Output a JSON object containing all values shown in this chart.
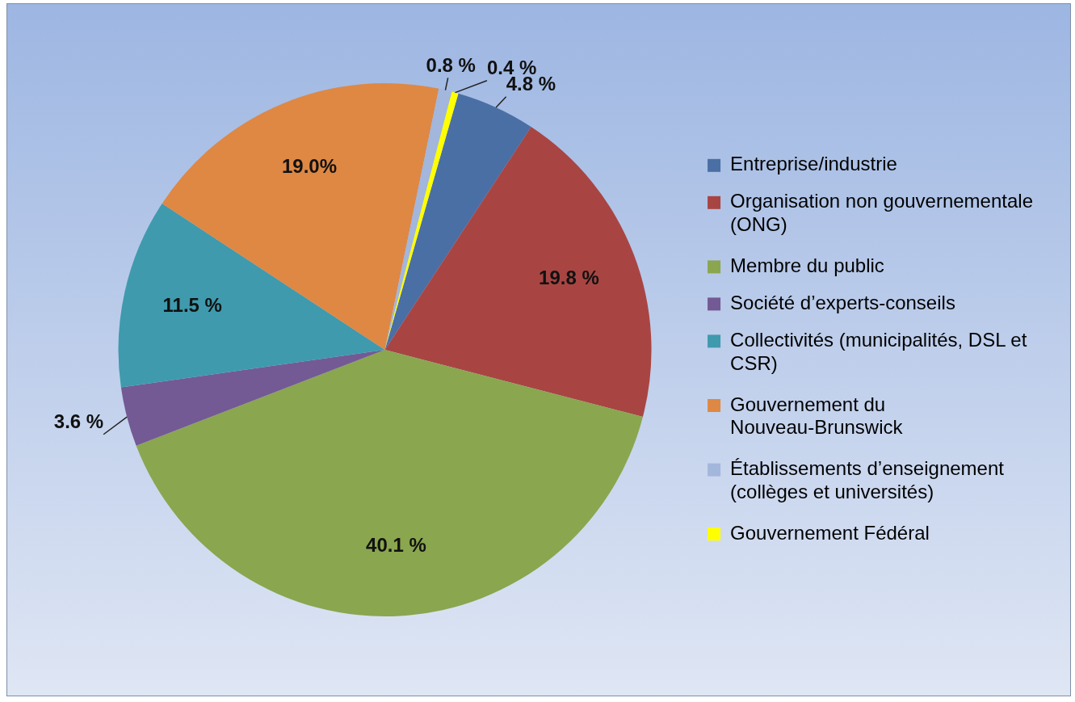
{
  "chart_data": {
    "type": "pie",
    "categories": [
      "Entreprise/industrie",
      "Organisation non gouvernementale (ONG)",
      "Membre du public",
      "Société d’experts-conseils",
      "Collectivités (municipalités, DSL et CSR)",
      "Gouvernement du Nouveau-Brunswick",
      "Établissements d’enseignement (collèges et universités)",
      "Gouvernement Fédéral"
    ],
    "values": [
      4.8,
      19.8,
      40.1,
      3.6,
      11.5,
      19.0,
      0.8,
      0.4
    ],
    "colors": [
      "#4a6fa5",
      "#a84543",
      "#8aa64f",
      "#735a94",
      "#3f9aad",
      "#de8844",
      "#a3b6dc",
      "#ffff00"
    ],
    "value_labels": [
      "4.8 %",
      "19.8 %",
      "40.1 %",
      "3.6 %",
      "11.5 %",
      "19.0%",
      "0.8 %",
      "0.4 %"
    ],
    "legend": "right"
  }
}
